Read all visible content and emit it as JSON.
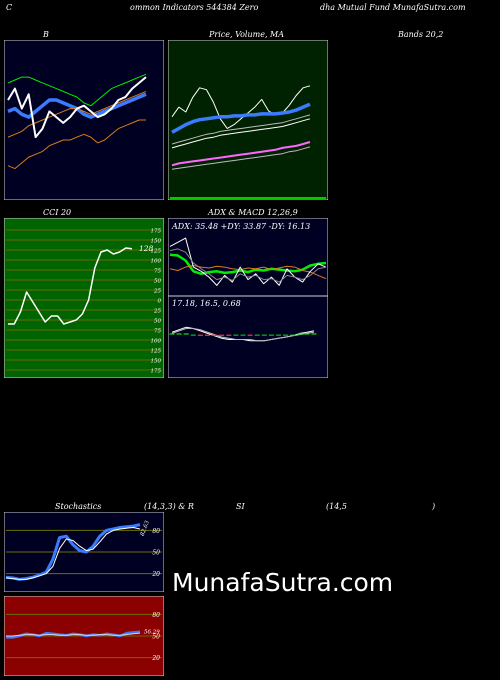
{
  "header": {
    "left": "C",
    "center_a": "ommon  Indicators 544384  Zero",
    "center_b": "dha  Mutual Fund MunafaSutra.com"
  },
  "titles": {
    "bollinger": "B",
    "price_ma": "Price, Volume, MA",
    "bands": "Bands 20,2",
    "cci": "CCI 20",
    "adx_macd": "ADX  & MACD 12,26,9",
    "stoch_a": "Stochastics",
    "stoch_b": "(14,3,3) & R",
    "stoch_c": "SI",
    "stoch_d": "(14,5",
    "stoch_e": ")"
  },
  "watermark": "MunafaSutra.com",
  "colors": {
    "navy": "#000022",
    "dark_green": "#002200",
    "olive": "#6b6b00",
    "rsi_red": "#8b0000",
    "blue": "#3a7bff",
    "bright_green": "#00ee00",
    "orange": "#d97b1a"
  },
  "chart_data": [
    {
      "type": "line",
      "name": "bollinger",
      "series": [
        {
          "values": [
            54,
            55,
            53,
            52,
            54,
            56,
            58,
            58,
            57,
            56,
            55,
            53,
            52,
            53,
            54,
            55,
            56,
            57,
            58,
            59,
            60
          ]
        },
        {
          "values": [
            64,
            65,
            66,
            66,
            65,
            64,
            63,
            62,
            61,
            60,
            59,
            57,
            56,
            58,
            60,
            62,
            63,
            64,
            65,
            66,
            67
          ]
        },
        {
          "values": [
            45,
            46,
            47,
            49,
            50,
            51,
            52,
            53,
            54,
            55,
            55,
            54,
            53,
            54,
            55,
            56,
            57,
            58,
            59,
            60,
            61
          ]
        },
        {
          "values": [
            58,
            62,
            55,
            60,
            45,
            48,
            54,
            52,
            50,
            52,
            55,
            56,
            54,
            52,
            53,
            55,
            58,
            59,
            62,
            64,
            66
          ]
        },
        {
          "values": [
            35,
            34,
            36,
            38,
            39,
            40,
            42,
            43,
            44,
            44,
            45,
            46,
            45,
            43,
            44,
            46,
            48,
            49,
            50,
            51,
            51
          ]
        }
      ]
    },
    {
      "type": "line",
      "name": "price_ma",
      "series": [
        {
          "values": [
            120,
            130,
            125,
            140,
            150,
            148,
            135,
            118,
            108,
            112,
            118,
            124,
            130,
            138,
            126,
            122,
            124,
            132,
            142,
            150,
            152
          ]
        },
        {
          "values": [
            104,
            108,
            112,
            115,
            117,
            118,
            119,
            120,
            120,
            121,
            121,
            122,
            122,
            123,
            123,
            123,
            124,
            125,
            127,
            130,
            133
          ]
        },
        {
          "values": [
            92,
            94,
            96,
            98,
            100,
            102,
            103,
            105,
            106,
            107,
            108,
            109,
            110,
            111,
            112,
            113,
            114,
            116,
            118,
            120,
            122
          ]
        },
        {
          "values": [
            88,
            90,
            92,
            94,
            96,
            98,
            99,
            101,
            102,
            103,
            104,
            105,
            106,
            107,
            108,
            109,
            110,
            112,
            114,
            116,
            118
          ]
        },
        {
          "values": [
            70,
            72,
            73,
            74,
            75,
            76,
            77,
            78,
            79,
            80,
            81,
            82,
            83,
            84,
            85,
            86,
            88,
            89,
            90,
            92,
            94
          ]
        },
        {
          "values": [
            66,
            67,
            68,
            69,
            70,
            71,
            72,
            73,
            74,
            75,
            76,
            77,
            78,
            79,
            80,
            81,
            82,
            84,
            85,
            87,
            89
          ]
        }
      ]
    },
    {
      "type": "line",
      "name": "cci",
      "ylim": [
        -175,
        175
      ],
      "ticks": [
        175,
        150,
        125,
        100,
        75,
        50,
        25,
        0,
        -25,
        -50,
        -75,
        -100,
        -125,
        -150,
        -175
      ],
      "tick_labels": [
        "175",
        "150",
        "125",
        "100",
        "75",
        "50",
        "25",
        "0",
        "25",
        "50",
        "75",
        "100",
        "125",
        "150",
        "175"
      ],
      "last_label": "128",
      "series": [
        {
          "values": [
            -60,
            -60,
            -30,
            20,
            -5,
            -30,
            -55,
            -40,
            -40,
            -60,
            -55,
            -50,
            -35,
            0,
            80,
            120,
            125,
            115,
            120,
            130,
            128
          ]
        }
      ]
    },
    {
      "type": "line",
      "name": "adx",
      "label": "ADX: 35.48  +DY: 33.87 -DY: 16.13",
      "series": [
        {
          "values": [
            45,
            44,
            38,
            25,
            22,
            24,
            25,
            23,
            24,
            26,
            24,
            27,
            26,
            28,
            27,
            26,
            25,
            27,
            32,
            34,
            35
          ]
        },
        {
          "values": [
            28,
            26,
            30,
            32,
            30,
            29,
            31,
            30,
            28,
            27,
            29,
            28,
            30,
            27,
            29,
            31,
            30,
            26,
            24,
            20,
            16
          ]
        },
        {
          "values": [
            55,
            60,
            65,
            30,
            25,
            18,
            8,
            20,
            12,
            30,
            15,
            22,
            10,
            18,
            8,
            28,
            18,
            12,
            25,
            34,
            30
          ]
        },
        {
          "values": [
            50,
            52,
            48,
            35,
            28,
            22,
            15,
            18,
            14,
            22,
            18,
            20,
            15,
            16,
            12,
            20,
            18,
            15,
            20,
            28,
            30
          ]
        }
      ]
    },
    {
      "type": "line",
      "name": "macd",
      "label": "17.18,  16.5,  0.68",
      "series": [
        {
          "values": [
            2,
            4,
            6,
            5,
            3,
            1,
            -1,
            -3,
            -4,
            -4,
            -4,
            -5,
            -5,
            -5,
            -4,
            -3,
            -2,
            -1,
            1,
            2,
            3
          ]
        },
        {
          "values": [
            1,
            3,
            5,
            5,
            4,
            2,
            0,
            -2,
            -3,
            -4,
            -4,
            -4,
            -5,
            -5,
            -4,
            -3,
            -2,
            -1,
            0,
            1,
            2
          ]
        }
      ]
    },
    {
      "type": "line",
      "name": "stochastics",
      "ticks": [
        80,
        50,
        20
      ],
      "tick_labels": [
        "80",
        "50",
        "20"
      ],
      "last_label": "82.63",
      "series": [
        {
          "values": [
            15,
            14,
            12,
            13,
            15,
            18,
            22,
            40,
            70,
            72,
            60,
            52,
            50,
            58,
            72,
            80,
            82,
            84,
            85,
            86,
            88
          ]
        },
        {
          "values": [
            14,
            13,
            12,
            12,
            14,
            17,
            20,
            30,
            55,
            68,
            66,
            58,
            52,
            54,
            64,
            75,
            80,
            82,
            83,
            84,
            82
          ]
        }
      ]
    },
    {
      "type": "line",
      "name": "rsi",
      "ticks": [
        80,
        50,
        20
      ],
      "tick_labels": [
        "80",
        "50",
        "20"
      ],
      "last_label": "56.29",
      "series": [
        {
          "values": [
            48,
            48,
            50,
            53,
            52,
            50,
            54,
            53,
            52,
            51,
            53,
            52,
            50,
            52,
            51,
            53,
            52,
            50,
            54,
            55,
            56
          ]
        },
        {
          "values": [
            50,
            50,
            51,
            52,
            52,
            51,
            52,
            52,
            51,
            51,
            52,
            52,
            51,
            51,
            52,
            52,
            51,
            51,
            52,
            53,
            54
          ]
        }
      ]
    }
  ]
}
